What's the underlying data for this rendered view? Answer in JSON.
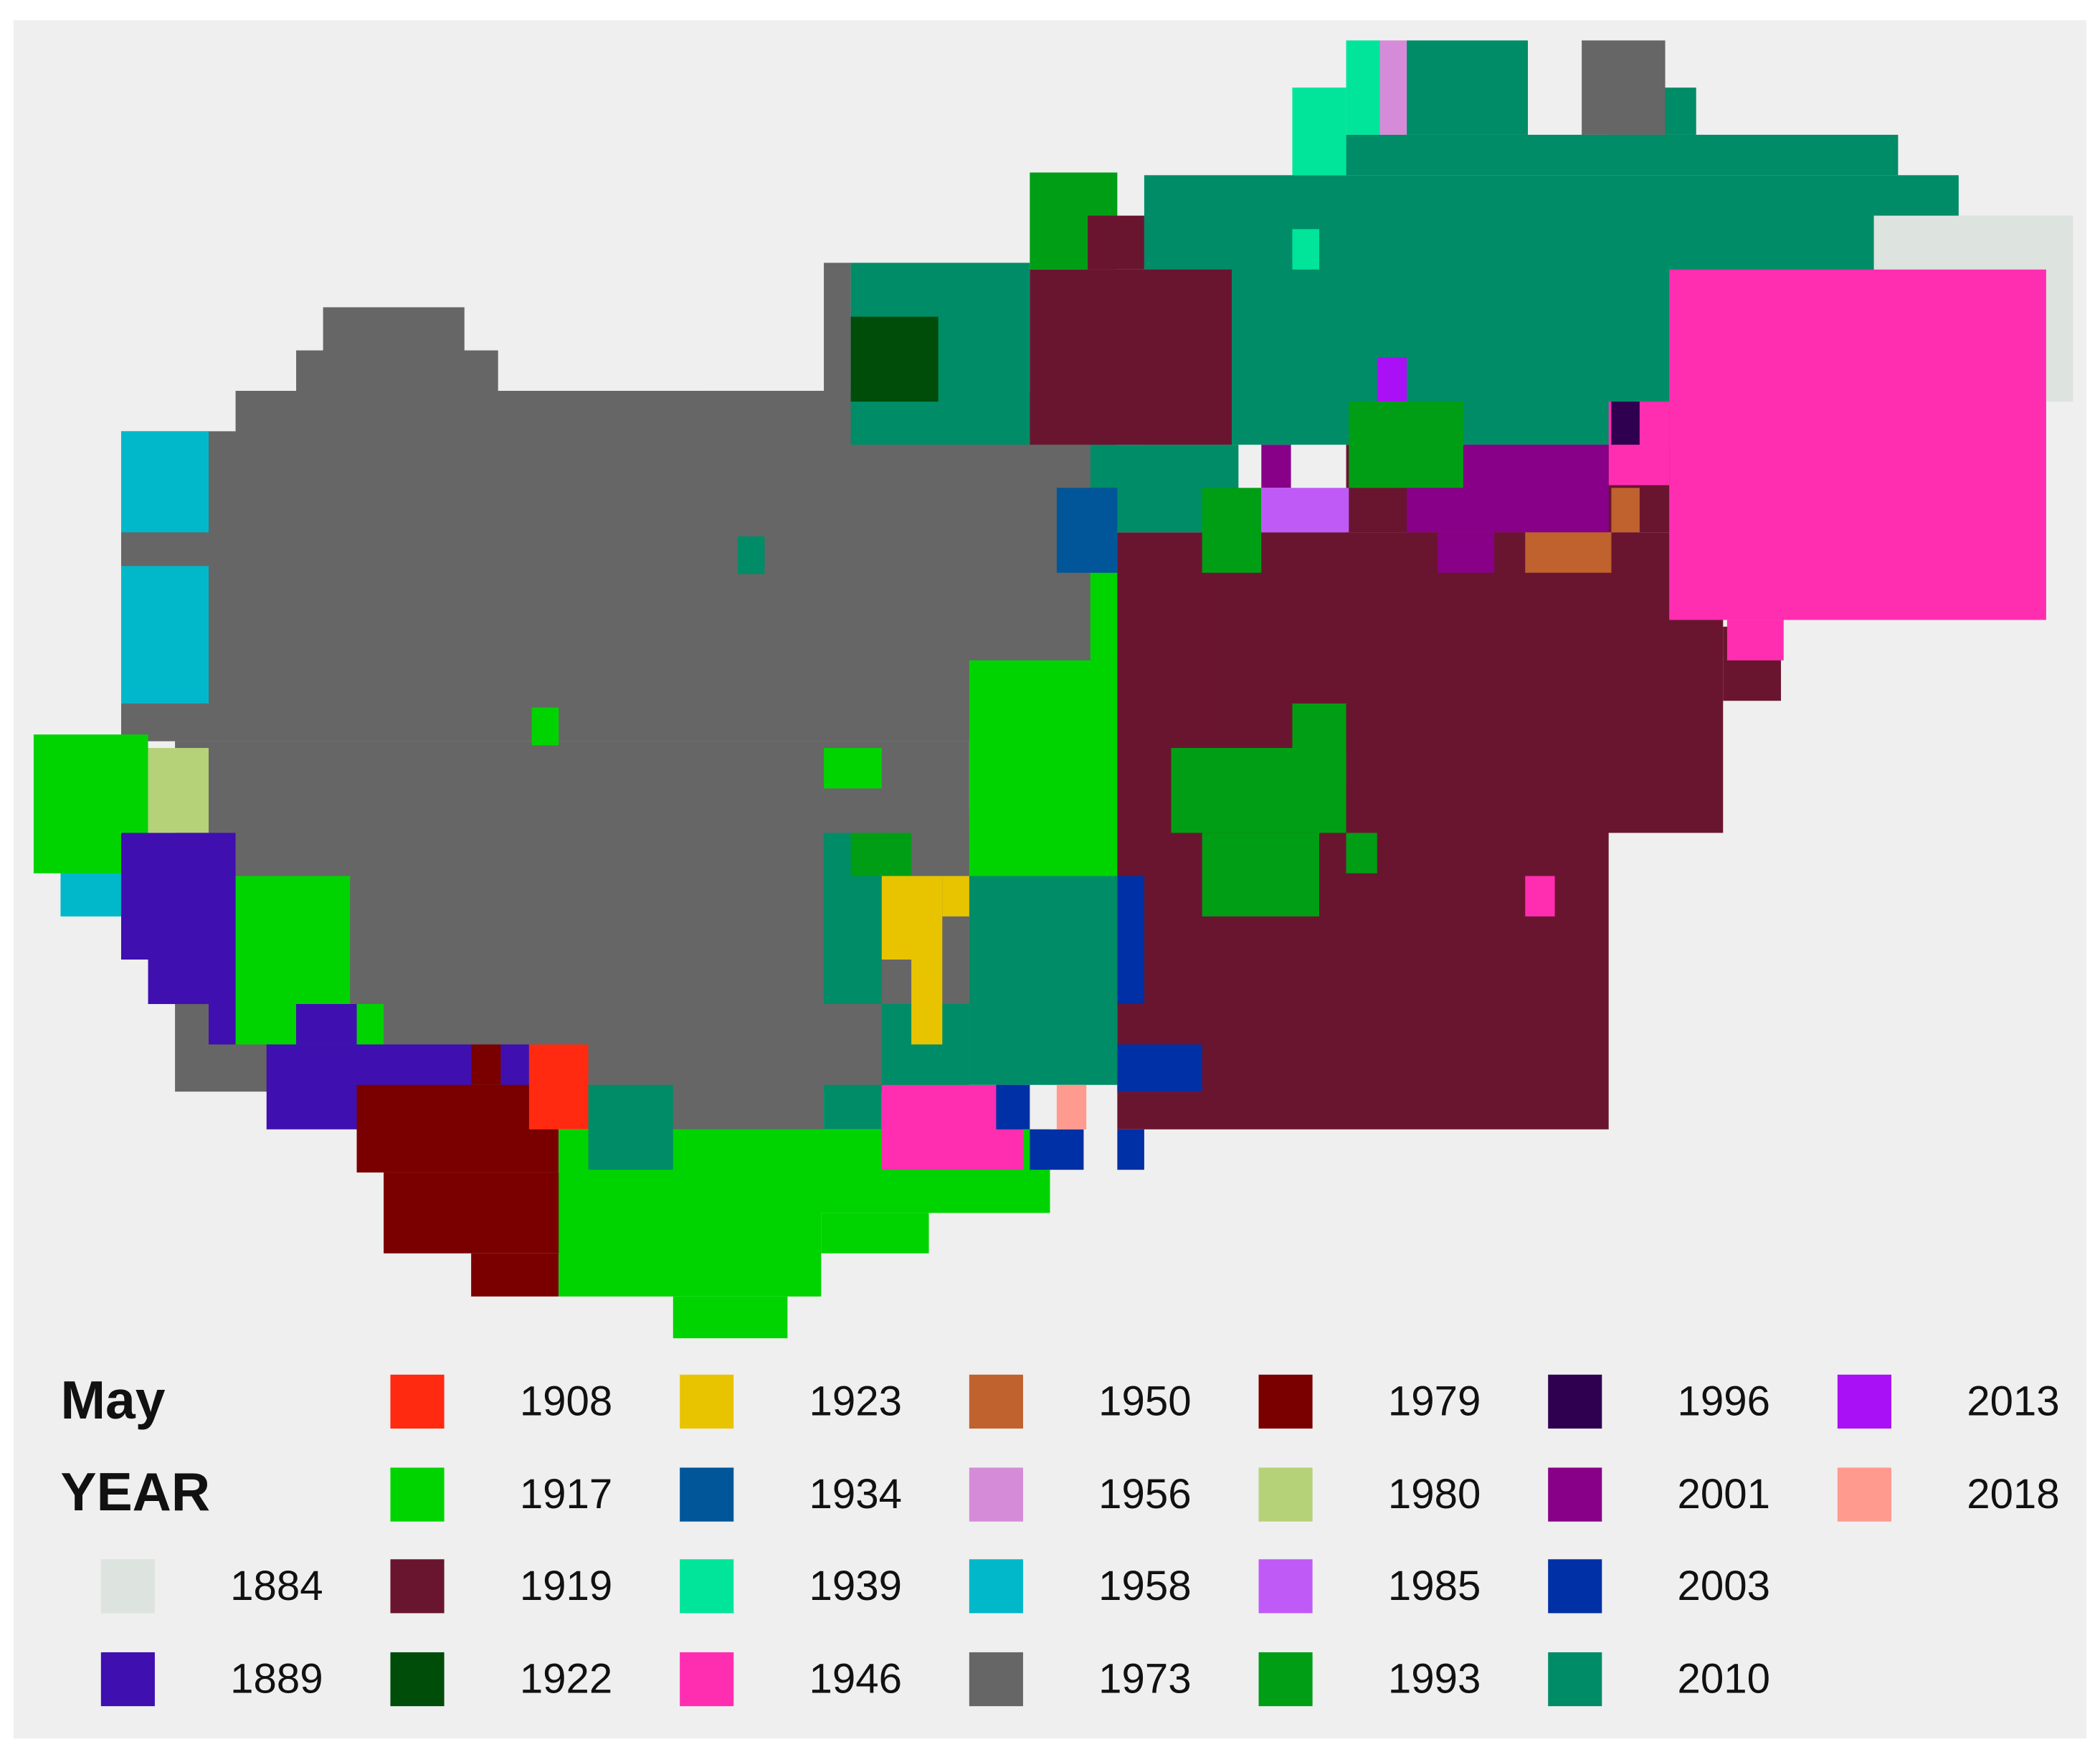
{
  "legend": {
    "title": [
      "May",
      "YEAR"
    ],
    "items": [
      {
        "label": "1884",
        "color": "#dde3df"
      },
      {
        "label": "1889",
        "color": "#3f0fb0"
      },
      {
        "label": "1908",
        "color": "#ff2a10"
      },
      {
        "label": "1917",
        "color": "#00d400"
      },
      {
        "label": "1919",
        "color": "#6a1530"
      },
      {
        "label": "1922",
        "color": "#004d0a"
      },
      {
        "label": "1923",
        "color": "#e8c400"
      },
      {
        "label": "1934",
        "color": "#005699"
      },
      {
        "label": "1939",
        "color": "#00e59a"
      },
      {
        "label": "1946",
        "color": "#ff2eb0"
      },
      {
        "label": "1950",
        "color": "#c0622d"
      },
      {
        "label": "1956",
        "color": "#d58bd8"
      },
      {
        "label": "1958",
        "color": "#00b8c9"
      },
      {
        "label": "1973",
        "color": "#666666"
      },
      {
        "label": "1979",
        "color": "#7a0000"
      },
      {
        "label": "1980",
        "color": "#b5d279"
      },
      {
        "label": "1985",
        "color": "#bf5af7"
      },
      {
        "label": "1993",
        "color": "#009e15"
      },
      {
        "label": "1996",
        "color": "#300050"
      },
      {
        "label": "2001",
        "color": "#880088"
      },
      {
        "label": "2003",
        "color": "#0030a5"
      },
      {
        "label": "2010",
        "color": "#008c66"
      },
      {
        "label": "2013",
        "color": "#aa10f5"
      },
      {
        "label": "2018",
        "color": "#ff9a8e"
      }
    ]
  }
}
